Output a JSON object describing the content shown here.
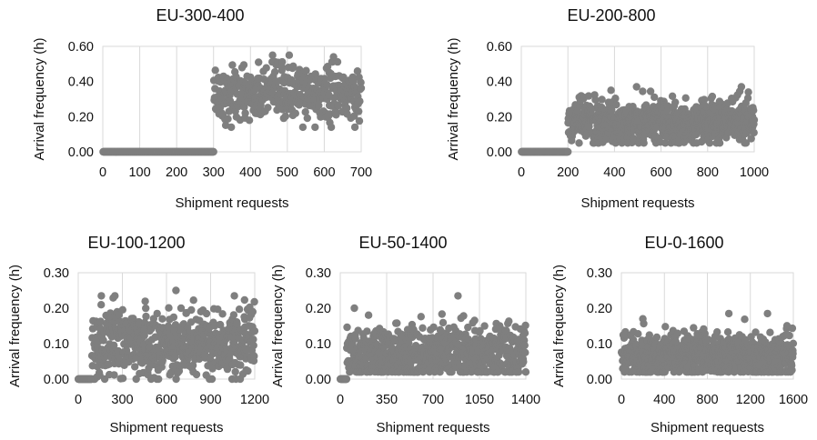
{
  "chart_data": [
    {
      "type": "scatter",
      "title": "EU-300-400",
      "xlabel": "Shipment requests",
      "ylabel": "Arrival frequency (h)",
      "xlim": [
        0,
        700
      ],
      "ylim": [
        0,
        0.6
      ],
      "xticks": [
        "0",
        "100",
        "200",
        "300",
        "400",
        "500",
        "600",
        "700"
      ],
      "yticks": [
        "0.00",
        "0.20",
        "0.40",
        "0.60"
      ],
      "grid": "vertical",
      "marker_color": "#7f7f7f",
      "segments": [
        {
          "x_from": 1,
          "x_to": 300,
          "y_value": 0.0
        },
        {
          "x_from": 301,
          "x_to": 700,
          "y_mean": 0.33,
          "y_min": 0.14,
          "y_max": 0.55
        }
      ],
      "notable_points": [
        {
          "x": 460,
          "y": 0.55
        },
        {
          "x": 505,
          "y": 0.55
        },
        {
          "x": 625,
          "y": 0.54
        },
        {
          "x": 575,
          "y": 0.14
        },
        {
          "x": 683,
          "y": 0.14
        }
      ]
    },
    {
      "type": "scatter",
      "title": "EU-200-800",
      "xlabel": "Shipment requests",
      "ylabel": "Arrival frequency (h)",
      "xlim": [
        0,
        1000
      ],
      "ylim": [
        0,
        0.6
      ],
      "xticks": [
        "0",
        "200",
        "400",
        "600",
        "800",
        "1000"
      ],
      "yticks": [
        "0.00",
        "0.20",
        "0.40",
        "0.60"
      ],
      "grid": "vertical",
      "marker_color": "#7f7f7f",
      "segments": [
        {
          "x_from": 1,
          "x_to": 200,
          "y_value": 0.0
        },
        {
          "x_from": 201,
          "x_to": 1000,
          "y_mean": 0.17,
          "y_min": 0.05,
          "y_max": 0.37
        }
      ],
      "notable_points": [
        {
          "x": 495,
          "y": 0.37
        },
        {
          "x": 945,
          "y": 0.37
        },
        {
          "x": 385,
          "y": 0.35
        }
      ]
    },
    {
      "type": "scatter",
      "title": "EU-100-1200",
      "xlabel": "Shipment requests",
      "ylabel": "Arrival frequency (h)",
      "xlim": [
        0,
        1300
      ],
      "ylim": [
        0,
        0.3
      ],
      "xticks": [
        "0",
        "300",
        "600",
        "900",
        "1200"
      ],
      "yticks": [
        "0.00",
        "0.10",
        "0.20",
        "0.30"
      ],
      "grid": "vertical",
      "marker_color": "#7f7f7f",
      "segments": [
        {
          "x_from": 1,
          "x_to": 100,
          "y_value": 0.0
        },
        {
          "x_from": 101,
          "x_to": 1300,
          "y_mean": 0.1,
          "y_min": 0.0,
          "y_max": 0.25
        }
      ],
      "notable_points": [
        {
          "x": 720,
          "y": 0.25
        },
        {
          "x": 170,
          "y": 0.235
        },
        {
          "x": 270,
          "y": 0.235
        },
        {
          "x": 1150,
          "y": 0.235
        }
      ]
    },
    {
      "type": "scatter",
      "title": "EU-50-1400",
      "xlabel": "Shipment requests",
      "ylabel": "Arrival frequency (h)",
      "xlim": [
        0,
        1450
      ],
      "ylim": [
        0,
        0.3
      ],
      "xticks": [
        "0",
        "350",
        "700",
        "1050",
        "1400"
      ],
      "yticks": [
        "0.00",
        "0.10",
        "0.20",
        "0.30"
      ],
      "grid": "vertical",
      "marker_color": "#7f7f7f",
      "segments": [
        {
          "x_from": 1,
          "x_to": 50,
          "y_value": 0.0
        },
        {
          "x_from": 51,
          "x_to": 1450,
          "y_mean": 0.075,
          "y_min": 0.02,
          "y_max": 0.235
        }
      ],
      "notable_points": [
        {
          "x": 920,
          "y": 0.235
        },
        {
          "x": 110,
          "y": 0.2
        }
      ]
    },
    {
      "type": "scatter",
      "title": "EU-0-1600",
      "xlabel": "Shipment requests",
      "ylabel": "Arrival frequency (h)",
      "xlim": [
        0,
        1600
      ],
      "ylim": [
        0,
        0.3
      ],
      "xticks": [
        "0",
        "400",
        "800",
        "1200",
        "1600"
      ],
      "yticks": [
        "0.00",
        "0.10",
        "0.20",
        "0.30"
      ],
      "grid": "vertical",
      "marker_color": "#7f7f7f",
      "segments": [
        {
          "x_from": 1,
          "x_to": 1600,
          "y_mean": 0.065,
          "y_min": 0.02,
          "y_max": 0.185
        }
      ],
      "notable_points": [
        {
          "x": 1000,
          "y": 0.185
        },
        {
          "x": 1360,
          "y": 0.185
        },
        {
          "x": 200,
          "y": 0.17
        }
      ]
    }
  ]
}
